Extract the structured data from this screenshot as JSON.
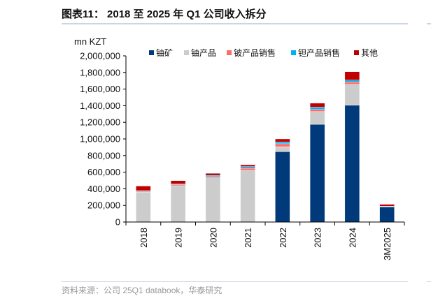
{
  "header": {
    "title": "图表11：  2018 至 2025 年 Q1 公司收入拆分"
  },
  "footer": {
    "source": "资料来源：公司 25Q1 databook，华泰研究"
  },
  "chart_data": {
    "type": "bar",
    "stacked": true,
    "title": "",
    "ylabel": "mn KZT",
    "xlabel": "",
    "ylim": [
      0,
      2000000
    ],
    "yticks": [
      "0",
      "200,000",
      "400,000",
      "600,000",
      "800,000",
      "1,000,000",
      "1,200,000",
      "1,400,000",
      "1,600,000",
      "1,800,000",
      "2,000,000"
    ],
    "ytick_values": [
      0,
      200000,
      400000,
      600000,
      800000,
      1000000,
      1200000,
      1400000,
      1600000,
      1800000,
      2000000
    ],
    "categories": [
      "2018",
      "2019",
      "2020",
      "2021",
      "2022",
      "2023",
      "2024",
      "3M2025"
    ],
    "legend_position": "top",
    "grid": false,
    "series": [
      {
        "name": "铀矿",
        "color": "#003a7a",
        "values": [
          0,
          0,
          0,
          0,
          846000,
          1176000,
          1406000,
          182000
        ]
      },
      {
        "name": "铀产品",
        "color": "#cccccc",
        "values": [
          360000,
          437000,
          532000,
          622000,
          61000,
          154000,
          252000,
          4000
        ]
      },
      {
        "name": "铍产品销售",
        "color": "#ff6b6b",
        "values": [
          10000,
          15000,
          15000,
          25000,
          35000,
          25000,
          28000,
          3000
        ]
      },
      {
        "name": "钽产品销售",
        "color": "#00b0f0",
        "values": [
          8000,
          8000,
          15000,
          20000,
          22000,
          28000,
          22000,
          2000
        ]
      },
      {
        "name": "其他",
        "color": "#c00000",
        "values": [
          55000,
          38000,
          24000,
          22000,
          36000,
          48000,
          101000,
          22000
        ]
      }
    ]
  }
}
